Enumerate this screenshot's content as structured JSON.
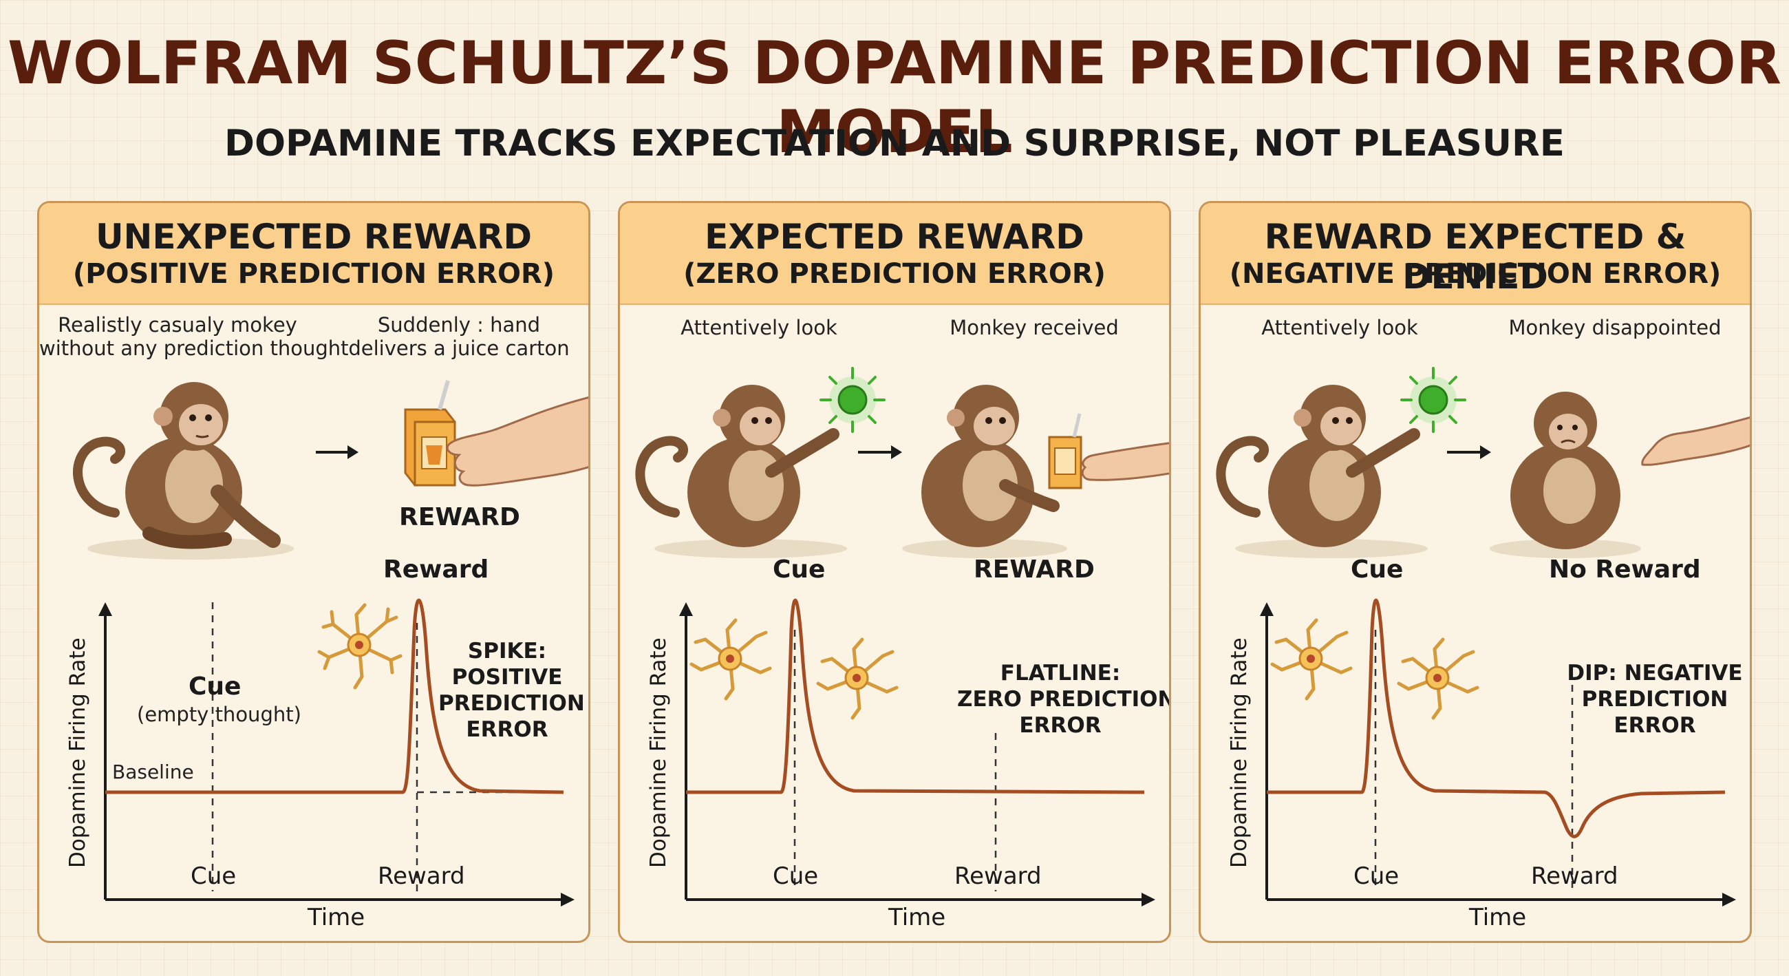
{
  "title": "WOLFRAM SCHULTZ’S DOPAMINE PREDICTION ERROR MODEL",
  "subtitle": "DOPAMINE TRACKS EXPECTATION AND SURPRISE, NOT PLEASURE",
  "panels": [
    {
      "title": "UNEXPECTED REWARD",
      "subtitle": "(POSITIVE PREDICTION ERROR)",
      "caption_left_1": "Realistly casualy mokey",
      "caption_left_2": "without any prediction thought",
      "caption_right_1": "Suddenly : hand",
      "caption_right_2": "delivers a juice carton",
      "reward_tag": "REWARD",
      "event_label": "Reward",
      "cue_label": "Cue",
      "cue_note": "(empty thought)",
      "baseline_label": "Baseline",
      "annotation": [
        "SPIKE:",
        "POSITIVE",
        "PREDICTION",
        "ERROR"
      ],
      "y_axis": "Dopamine Firing Rate",
      "x_axis": "Time",
      "x_tick_cue": "Cue",
      "x_tick_reward": "Reward"
    },
    {
      "title": "EXPECTED REWARD",
      "subtitle": "(ZERO PREDICTION ERROR)",
      "caption_left_1": "Attentively look",
      "caption_right_1": "Monkey received",
      "cue_label": "Cue",
      "event_label": "REWARD",
      "annotation": [
        "FLATLINE:",
        "ZERO PREDICTION",
        "ERROR"
      ],
      "y_axis": "Dopamine Firing Rate",
      "x_axis": "Time",
      "x_tick_cue": "Cue",
      "x_tick_reward": "Reward"
    },
    {
      "title": "REWARD EXPECTED & DENIED",
      "subtitle": "(NEGATIVE PREDICTION ERROR)",
      "caption_left_1": "Attentively look",
      "caption_right_1": "Monkey disappointed",
      "cue_label": "Cue",
      "event_label": "No Reward",
      "annotation": [
        "DIP: NEGATIVE",
        "PREDICTION",
        "ERROR"
      ],
      "y_axis": "Dopamine Firing Rate",
      "x_axis": "Time",
      "x_tick_cue": "Cue",
      "x_tick_reward": "Reward"
    }
  ],
  "colors": {
    "title": "#5a1e0c",
    "header": "#fbcf8c",
    "border": "#c99557",
    "trace": "#a54d22",
    "cue_light": "#3fae2a"
  },
  "icons": [
    "monkey-icon",
    "juice-carton-icon",
    "hand-icon",
    "neuron-icon",
    "green-cue-light-icon",
    "arrow-right-icon"
  ]
}
